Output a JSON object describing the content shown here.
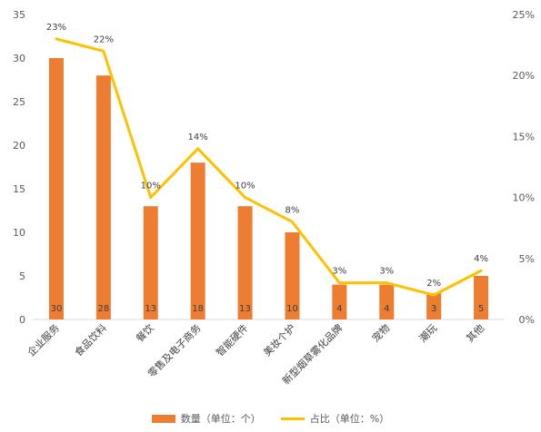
{
  "chart_data": {
    "type": "bar",
    "categories": [
      "企业服务",
      "食品饮料",
      "餐饮",
      "零售及电子商务",
      "智能硬件",
      "美妆个护",
      "新型烟草雾化品牌",
      "宠物",
      "潮玩",
      "其他"
    ],
    "series": [
      {
        "name": "数量（单位：个）",
        "type": "bar",
        "axis": "left",
        "values": [
          30,
          28,
          13,
          18,
          13,
          10,
          4,
          4,
          3,
          5
        ],
        "color": "#ED7D31"
      },
      {
        "name": "占比（单位：%）",
        "type": "line",
        "axis": "right",
        "values": [
          23,
          22,
          10,
          14,
          10,
          8,
          3,
          3,
          2,
          4
        ],
        "color": "#FFC000"
      }
    ],
    "y_left": {
      "min": 0,
      "max": 35,
      "ticks": [
        0,
        5,
        10,
        15,
        20,
        25,
        30,
        35
      ]
    },
    "y_right": {
      "min": 0,
      "max": 25,
      "ticks": [
        "0%",
        "5%",
        "10%",
        "15%",
        "20%",
        "25%"
      ]
    },
    "bar_labels": [
      "30",
      "28",
      "13",
      "18",
      "13",
      "10",
      "4",
      "4",
      "3",
      "5"
    ],
    "line_labels": [
      "23%",
      "22%",
      "10%",
      "14%",
      "10%",
      "8%",
      "3%",
      "3%",
      "2%",
      "4%"
    ],
    "legend": {
      "position": "bottom",
      "items": [
        "数量（单位：个）",
        "占比（单位：%）"
      ]
    },
    "grid": false
  }
}
